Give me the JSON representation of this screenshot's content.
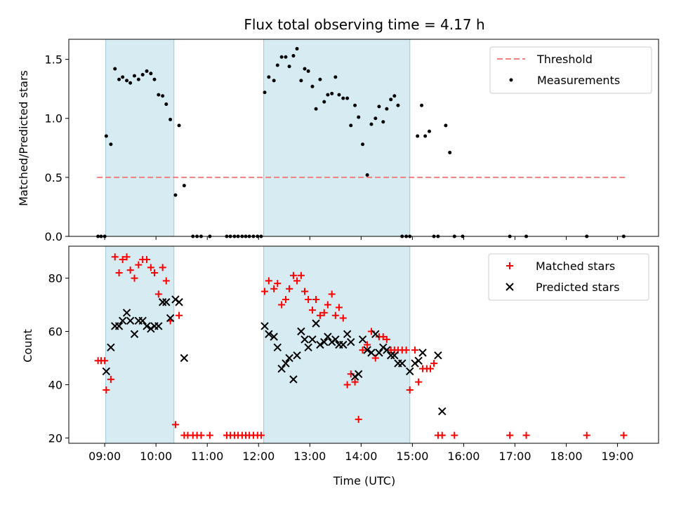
{
  "chart_data": [
    {
      "type": "scatter",
      "title": "Flux total observing time = 4.17 h",
      "xlabel": "",
      "ylabel": "Matched/Predicted stars",
      "ylim": [
        0,
        1.67
      ],
      "xlim_hours": [
        8.3,
        19.8
      ],
      "xticks": [
        "09:00",
        "10:00",
        "11:00",
        "12:00",
        "13:00",
        "14:00",
        "15:00",
        "16:00",
        "17:00",
        "18:00",
        "19:00"
      ],
      "yticks": [
        "0.0",
        "0.5",
        "1.0",
        "1.5"
      ],
      "shaded_spans_hours": [
        [
          9.02,
          10.35
        ],
        [
          12.1,
          14.95
        ]
      ],
      "threshold": {
        "name": "Threshold",
        "value": 0.5,
        "x_range_hours": [
          8.85,
          19.2
        ],
        "color": "#f08080"
      },
      "legend": {
        "placement": "top-right",
        "entries": [
          "Threshold",
          "Measurements"
        ]
      },
      "series": [
        {
          "name": "Measurements",
          "color": "#000000",
          "points": [
            [
              8.87,
              0
            ],
            [
              8.93,
              0
            ],
            [
              9.0,
              0
            ],
            [
              9.03,
              0.85
            ],
            [
              9.12,
              0.78
            ],
            [
              9.2,
              1.42
            ],
            [
              9.28,
              1.33
            ],
            [
              9.35,
              1.35
            ],
            [
              9.43,
              1.32
            ],
            [
              9.5,
              1.3
            ],
            [
              9.58,
              1.36
            ],
            [
              9.66,
              1.33
            ],
            [
              9.74,
              1.37
            ],
            [
              9.82,
              1.4
            ],
            [
              9.9,
              1.38
            ],
            [
              9.97,
              1.33
            ],
            [
              10.05,
              1.2
            ],
            [
              10.13,
              1.19
            ],
            [
              10.2,
              1.12
            ],
            [
              10.28,
              0.99
            ],
            [
              10.38,
              0.35
            ],
            [
              10.45,
              0.94
            ],
            [
              10.55,
              0.43
            ],
            [
              10.72,
              0
            ],
            [
              10.8,
              0
            ],
            [
              10.88,
              0
            ],
            [
              11.05,
              0
            ],
            [
              11.38,
              0
            ],
            [
              11.45,
              0
            ],
            [
              11.53,
              0
            ],
            [
              11.6,
              0
            ],
            [
              11.68,
              0
            ],
            [
              11.75,
              0
            ],
            [
              11.82,
              0
            ],
            [
              11.9,
              0
            ],
            [
              11.98,
              0
            ],
            [
              12.05,
              0
            ],
            [
              12.12,
              1.22
            ],
            [
              12.2,
              1.35
            ],
            [
              12.3,
              1.32
            ],
            [
              12.37,
              1.45
            ],
            [
              12.45,
              1.52
            ],
            [
              12.53,
              1.52
            ],
            [
              12.6,
              1.44
            ],
            [
              12.68,
              1.53
            ],
            [
              12.75,
              1.59
            ],
            [
              12.83,
              1.32
            ],
            [
              12.9,
              1.42
            ],
            [
              12.97,
              1.4
            ],
            [
              13.05,
              1.27
            ],
            [
              13.12,
              1.08
            ],
            [
              13.2,
              1.33
            ],
            [
              13.28,
              1.14
            ],
            [
              13.35,
              1.2
            ],
            [
              13.43,
              1.21
            ],
            [
              13.5,
              1.35
            ],
            [
              13.57,
              1.2
            ],
            [
              13.65,
              1.17
            ],
            [
              13.73,
              1.17
            ],
            [
              13.8,
              0.94
            ],
            [
              13.88,
              1.11
            ],
            [
              13.95,
              1.01
            ],
            [
              14.03,
              0.78
            ],
            [
              14.12,
              0.52
            ],
            [
              14.2,
              0.95
            ],
            [
              14.28,
              1.0
            ],
            [
              14.35,
              1.1
            ],
            [
              14.43,
              0.97
            ],
            [
              14.5,
              1.08
            ],
            [
              14.58,
              1.16
            ],
            [
              14.65,
              1.19
            ],
            [
              14.72,
              1.11
            ],
            [
              14.8,
              0
            ],
            [
              14.88,
              0
            ],
            [
              14.95,
              0
            ],
            [
              15.1,
              0.85
            ],
            [
              15.18,
              1.11
            ],
            [
              15.25,
              0.85
            ],
            [
              15.33,
              0.89
            ],
            [
              15.42,
              0
            ],
            [
              15.5,
              0
            ],
            [
              15.65,
              0.94
            ],
            [
              15.73,
              0.71
            ],
            [
              15.82,
              0
            ],
            [
              15.98,
              0
            ],
            [
              16.9,
              0
            ],
            [
              17.22,
              0
            ],
            [
              18.4,
              0
            ],
            [
              19.12,
              0
            ]
          ]
        }
      ]
    },
    {
      "type": "scatter",
      "title": "",
      "xlabel": "Time (UTC)",
      "ylabel": "Count",
      "ylim": [
        18,
        92
      ],
      "xlim_hours": [
        8.3,
        19.8
      ],
      "xticks": [
        "09:00",
        "10:00",
        "11:00",
        "12:00",
        "13:00",
        "14:00",
        "15:00",
        "16:00",
        "17:00",
        "18:00",
        "19:00"
      ],
      "yticks": [
        "20",
        "40",
        "60",
        "80"
      ],
      "shaded_spans_hours": [
        [
          9.02,
          10.35
        ],
        [
          12.1,
          14.95
        ]
      ],
      "legend": {
        "placement": "top-right",
        "entries": [
          "Matched stars",
          "Predicted stars"
        ]
      },
      "series": [
        {
          "name": "Matched stars",
          "color": "#ff0000",
          "marker": "plus",
          "points": [
            [
              8.87,
              49
            ],
            [
              8.93,
              49
            ],
            [
              9.0,
              49
            ],
            [
              9.03,
              38
            ],
            [
              9.12,
              42
            ],
            [
              9.2,
              88
            ],
            [
              9.28,
              82
            ],
            [
              9.35,
              87
            ],
            [
              9.43,
              88
            ],
            [
              9.5,
              83
            ],
            [
              9.58,
              80
            ],
            [
              9.66,
              85
            ],
            [
              9.74,
              87
            ],
            [
              9.82,
              87
            ],
            [
              9.9,
              84
            ],
            [
              9.97,
              82
            ],
            [
              10.05,
              74
            ],
            [
              10.13,
              84
            ],
            [
              10.2,
              79
            ],
            [
              10.28,
              64
            ],
            [
              10.38,
              25
            ],
            [
              10.45,
              66
            ],
            [
              10.55,
              21
            ],
            [
              10.62,
              21
            ],
            [
              10.72,
              21
            ],
            [
              10.8,
              21
            ],
            [
              10.88,
              21
            ],
            [
              11.05,
              21
            ],
            [
              11.38,
              21
            ],
            [
              11.45,
              21
            ],
            [
              11.53,
              21
            ],
            [
              11.6,
              21
            ],
            [
              11.68,
              21
            ],
            [
              11.75,
              21
            ],
            [
              11.82,
              21
            ],
            [
              11.9,
              21
            ],
            [
              11.98,
              21
            ],
            [
              12.05,
              21
            ],
            [
              12.12,
              75
            ],
            [
              12.2,
              79
            ],
            [
              12.3,
              76
            ],
            [
              12.37,
              78
            ],
            [
              12.45,
              70
            ],
            [
              12.53,
              72
            ],
            [
              12.6,
              76
            ],
            [
              12.68,
              81
            ],
            [
              12.75,
              79
            ],
            [
              12.83,
              81
            ],
            [
              12.9,
              75
            ],
            [
              12.97,
              72
            ],
            [
              13.05,
              68
            ],
            [
              13.12,
              72
            ],
            [
              13.2,
              66
            ],
            [
              13.28,
              67
            ],
            [
              13.35,
              70
            ],
            [
              13.43,
              74
            ],
            [
              13.5,
              66
            ],
            [
              13.57,
              69
            ],
            [
              13.65,
              65
            ],
            [
              13.73,
              40
            ],
            [
              13.8,
              44
            ],
            [
              13.88,
              41
            ],
            [
              13.95,
              27
            ],
            [
              14.03,
              53
            ],
            [
              14.12,
              55
            ],
            [
              14.2,
              60
            ],
            [
              14.28,
              50
            ],
            [
              14.35,
              58
            ],
            [
              14.43,
              58
            ],
            [
              14.5,
              57
            ],
            [
              14.58,
              53
            ],
            [
              14.65,
              53
            ],
            [
              14.72,
              53
            ],
            [
              14.8,
              53
            ],
            [
              14.88,
              53
            ],
            [
              14.95,
              38
            ],
            [
              15.05,
              53
            ],
            [
              15.12,
              41
            ],
            [
              15.2,
              46
            ],
            [
              15.28,
              46
            ],
            [
              15.35,
              46
            ],
            [
              15.42,
              48
            ],
            [
              15.5,
              21
            ],
            [
              15.58,
              21
            ],
            [
              15.82,
              21
            ],
            [
              16.9,
              21
            ],
            [
              17.22,
              21
            ],
            [
              18.4,
              21
            ],
            [
              19.12,
              21
            ]
          ]
        },
        {
          "name": "Predicted stars",
          "color": "#000000",
          "marker": "x",
          "points": [
            [
              9.03,
              45
            ],
            [
              9.12,
              54
            ],
            [
              9.2,
              62
            ],
            [
              9.28,
              62
            ],
            [
              9.35,
              64
            ],
            [
              9.43,
              67
            ],
            [
              9.5,
              64
            ],
            [
              9.58,
              59
            ],
            [
              9.66,
              64
            ],
            [
              9.74,
              64
            ],
            [
              9.82,
              62
            ],
            [
              9.9,
              61
            ],
            [
              9.97,
              62
            ],
            [
              10.05,
              62
            ],
            [
              10.13,
              71
            ],
            [
              10.2,
              71
            ],
            [
              10.28,
              65
            ],
            [
              10.38,
              72
            ],
            [
              10.45,
              71
            ],
            [
              10.55,
              50
            ],
            [
              12.12,
              62
            ],
            [
              12.2,
              59
            ],
            [
              12.3,
              58
            ],
            [
              12.37,
              54
            ],
            [
              12.45,
              46
            ],
            [
              12.53,
              48
            ],
            [
              12.6,
              50
            ],
            [
              12.68,
              42
            ],
            [
              12.75,
              51
            ],
            [
              12.83,
              60
            ],
            [
              12.9,
              57
            ],
            [
              12.97,
              54
            ],
            [
              13.05,
              57
            ],
            [
              13.12,
              63
            ],
            [
              13.2,
              55
            ],
            [
              13.28,
              56
            ],
            [
              13.35,
              58
            ],
            [
              13.43,
              56
            ],
            [
              13.5,
              57
            ],
            [
              13.57,
              55
            ],
            [
              13.65,
              55
            ],
            [
              13.73,
              59
            ],
            [
              13.8,
              56
            ],
            [
              13.88,
              43
            ],
            [
              13.95,
              44
            ],
            [
              14.03,
              57
            ],
            [
              14.12,
              53
            ],
            [
              14.2,
              52
            ],
            [
              14.28,
              59
            ],
            [
              14.35,
              52
            ],
            [
              14.43,
              54
            ],
            [
              14.5,
              53
            ],
            [
              14.58,
              51
            ],
            [
              14.65,
              51
            ],
            [
              14.72,
              48
            ],
            [
              14.8,
              48
            ],
            [
              14.95,
              45
            ],
            [
              15.05,
              48
            ],
            [
              15.12,
              49
            ],
            [
              15.2,
              52
            ],
            [
              15.5,
              51
            ],
            [
              15.58,
              30
            ]
          ]
        }
      ]
    }
  ]
}
